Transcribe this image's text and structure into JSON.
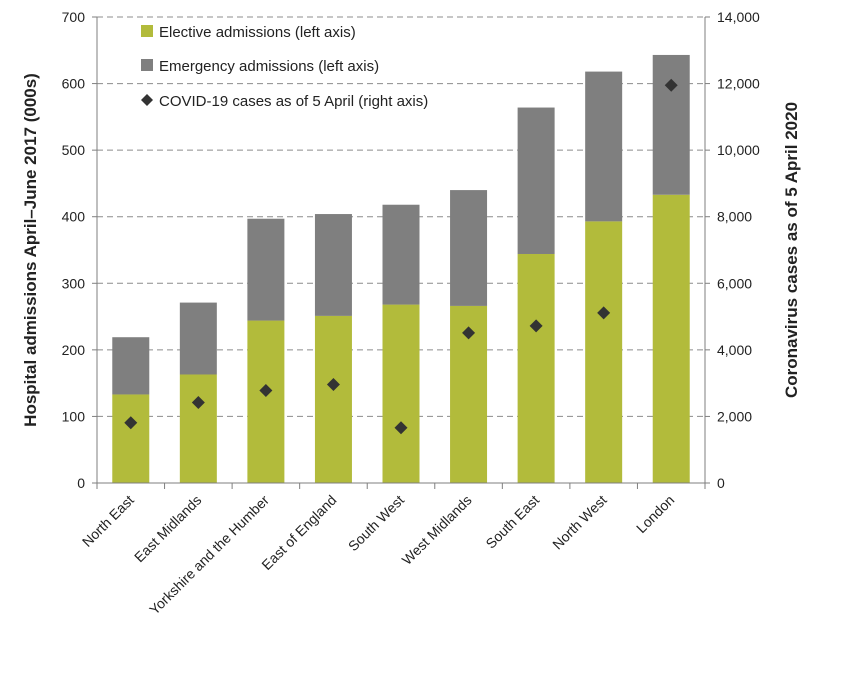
{
  "colors": {
    "elective": "#b2bb3b",
    "emergency": "#7f7f7f",
    "covid": "#333333",
    "grid": "#8c8c8c",
    "axis": "#7f7f7f"
  },
  "chart_data": {
    "type": "bar",
    "stacked": true,
    "categories": [
      "North East",
      "East Midlands",
      "Yorkshire and the Humber",
      "East of England",
      "South West",
      "West Midlands",
      "South East",
      "North West",
      "London"
    ],
    "series": [
      {
        "name": "Elective admissions (left axis)",
        "axis": "left",
        "kind": "bar",
        "values": [
          133,
          163,
          244,
          251,
          268,
          266,
          344,
          393,
          433
        ]
      },
      {
        "name": "Emergency admissions (left axis)",
        "axis": "left",
        "kind": "bar",
        "values": [
          86,
          108,
          153,
          153,
          150,
          174,
          220,
          225,
          210
        ]
      },
      {
        "name": "COVID-19 cases as of 5 April (right axis)",
        "axis": "right",
        "kind": "scatter",
        "marker": "diamond",
        "values": [
          1810,
          2420,
          2780,
          2960,
          1660,
          4510,
          4720,
          5110,
          11950
        ]
      }
    ],
    "ylabel": "Hospital admissions April–June 2017 (000s)",
    "y2label": "Coronavirus cases as of 5 April 2020",
    "ylim": [
      0,
      700
    ],
    "y2lim": [
      0,
      14000
    ],
    "yticks": [
      0,
      100,
      200,
      300,
      400,
      500,
      600,
      700
    ],
    "y2ticks": [
      0,
      2000,
      4000,
      6000,
      8000,
      10000,
      12000,
      14000
    ],
    "ytick_labels": [
      "0",
      "100",
      "200",
      "300",
      "400",
      "500",
      "600",
      "700"
    ],
    "y2tick_labels": [
      "0",
      "2,000",
      "4,000",
      "6,000",
      "8,000",
      "10,000",
      "12,000",
      "14,000"
    ],
    "grid": "horizontal-dashed",
    "legend_position": "top-left"
  }
}
